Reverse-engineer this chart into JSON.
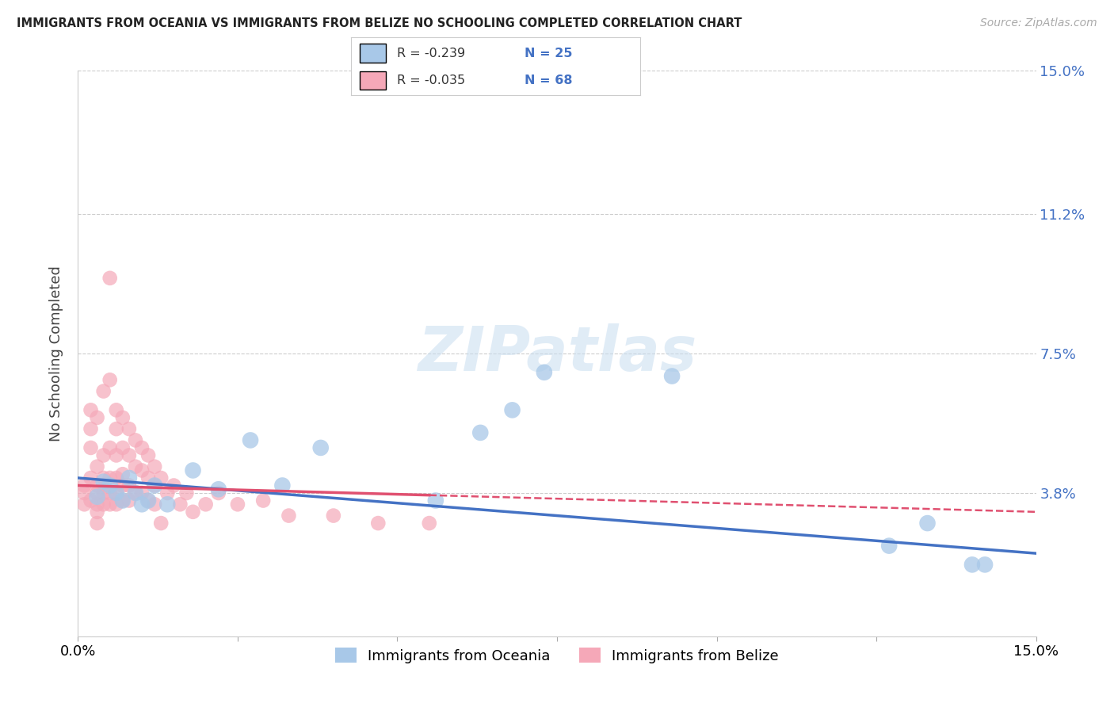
{
  "title": "IMMIGRANTS FROM OCEANIA VS IMMIGRANTS FROM BELIZE NO SCHOOLING COMPLETED CORRELATION CHART",
  "source": "Source: ZipAtlas.com",
  "ylabel": "No Schooling Completed",
  "legend_label1": "Immigrants from Oceania",
  "legend_label2": "Immigrants from Belize",
  "r1": "-0.239",
  "n1": "25",
  "r2": "-0.035",
  "n2": "68",
  "xlim": [
    0,
    0.15
  ],
  "ylim": [
    0,
    0.15
  ],
  "yticks": [
    0.0,
    0.038,
    0.075,
    0.112,
    0.15
  ],
  "ytick_labels": [
    "",
    "3.8%",
    "7.5%",
    "11.2%",
    "15.0%"
  ],
  "xtick_labels_left": "0.0%",
  "xtick_labels_right": "15.0%",
  "color_oceania": "#a8c8e8",
  "color_belize": "#f5a8b8",
  "line_color_oceania": "#4472c4",
  "line_color_belize": "#e05070",
  "watermark": "ZIPatlas",
  "oceania_x": [
    0.003,
    0.004,
    0.005,
    0.006,
    0.007,
    0.008,
    0.009,
    0.01,
    0.011,
    0.012,
    0.014,
    0.018,
    0.022,
    0.027,
    0.032,
    0.038,
    0.056,
    0.063,
    0.068,
    0.073,
    0.093,
    0.127,
    0.133,
    0.14,
    0.142
  ],
  "oceania_y": [
    0.037,
    0.041,
    0.04,
    0.038,
    0.036,
    0.042,
    0.038,
    0.035,
    0.036,
    0.04,
    0.035,
    0.044,
    0.039,
    0.052,
    0.04,
    0.05,
    0.036,
    0.054,
    0.06,
    0.07,
    0.069,
    0.024,
    0.03,
    0.019,
    0.019
  ],
  "belize_x": [
    0.001,
    0.001,
    0.001,
    0.002,
    0.002,
    0.002,
    0.002,
    0.002,
    0.003,
    0.003,
    0.003,
    0.003,
    0.003,
    0.003,
    0.003,
    0.004,
    0.004,
    0.004,
    0.004,
    0.004,
    0.005,
    0.005,
    0.005,
    0.005,
    0.005,
    0.005,
    0.006,
    0.006,
    0.006,
    0.006,
    0.006,
    0.006,
    0.007,
    0.007,
    0.007,
    0.007,
    0.007,
    0.008,
    0.008,
    0.008,
    0.008,
    0.009,
    0.009,
    0.009,
    0.01,
    0.01,
    0.01,
    0.011,
    0.011,
    0.011,
    0.012,
    0.012,
    0.012,
    0.013,
    0.013,
    0.014,
    0.015,
    0.016,
    0.017,
    0.018,
    0.02,
    0.022,
    0.025,
    0.029,
    0.033,
    0.04,
    0.047,
    0.055
  ],
  "belize_y": [
    0.04,
    0.038,
    0.035,
    0.06,
    0.055,
    0.05,
    0.042,
    0.036,
    0.058,
    0.045,
    0.04,
    0.038,
    0.035,
    0.033,
    0.03,
    0.065,
    0.048,
    0.042,
    0.038,
    0.035,
    0.095,
    0.068,
    0.05,
    0.042,
    0.038,
    0.035,
    0.06,
    0.055,
    0.048,
    0.042,
    0.038,
    0.035,
    0.058,
    0.05,
    0.043,
    0.04,
    0.036,
    0.055,
    0.048,
    0.04,
    0.036,
    0.052,
    0.045,
    0.038,
    0.05,
    0.044,
    0.038,
    0.048,
    0.042,
    0.036,
    0.045,
    0.04,
    0.035,
    0.042,
    0.03,
    0.038,
    0.04,
    0.035,
    0.038,
    0.033,
    0.035,
    0.038,
    0.035,
    0.036,
    0.032,
    0.032,
    0.03,
    0.03
  ],
  "trend_oceania_x0": 0.0,
  "trend_oceania_y0": 0.042,
  "trend_oceania_x1": 0.15,
  "trend_oceania_y1": 0.022,
  "trend_belize_x0": 0.0,
  "trend_belize_y0": 0.04,
  "trend_belize_x1": 0.15,
  "trend_belize_y1": 0.033
}
